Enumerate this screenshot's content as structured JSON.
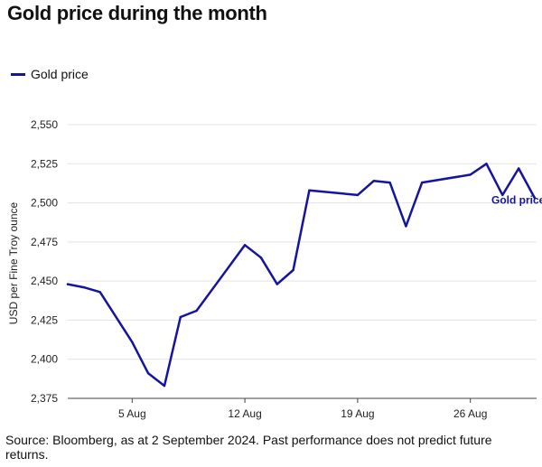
{
  "title": "Gold price during the month",
  "source": "Source: Bloomberg, as at 2 September 2024. Past performance does not predict future returns.",
  "chart_data": {
    "type": "line",
    "title": "Gold price during the month",
    "ylabel": "USD per Fine Troy ounce",
    "xlabel": "",
    "ylim": [
      2375,
      2550
    ],
    "yticks": [
      2375,
      2400,
      2425,
      2450,
      2475,
      2500,
      2525,
      2550
    ],
    "ytick_labels": [
      "2,375",
      "2,400",
      "2,425",
      "2,450",
      "2,475",
      "2,500",
      "2,525",
      "2,550"
    ],
    "xlim": [
      "2024-08-01",
      "2024-08-30"
    ],
    "xticks": [
      "2024-08-05",
      "2024-08-12",
      "2024-08-19",
      "2024-08-26"
    ],
    "xtick_labels": [
      "5 Aug",
      "12 Aug",
      "19 Aug",
      "26 Aug"
    ],
    "grid": "horizontal",
    "legend_position": "top-left",
    "series": [
      {
        "name": "Gold price",
        "color": "#1414a0",
        "end_label": "Gold price",
        "points": [
          {
            "x": "2024-08-01",
            "y": 2448
          },
          {
            "x": "2024-08-02",
            "y": 2446
          },
          {
            "x": "2024-08-03",
            "y": 2443
          },
          {
            "x": "2024-08-05",
            "y": 2411
          },
          {
            "x": "2024-08-06",
            "y": 2391
          },
          {
            "x": "2024-08-07",
            "y": 2383
          },
          {
            "x": "2024-08-08",
            "y": 2427
          },
          {
            "x": "2024-08-09",
            "y": 2431
          },
          {
            "x": "2024-08-12",
            "y": 2473
          },
          {
            "x": "2024-08-13",
            "y": 2465
          },
          {
            "x": "2024-08-14",
            "y": 2448
          },
          {
            "x": "2024-08-15",
            "y": 2457
          },
          {
            "x": "2024-08-16",
            "y": 2508
          },
          {
            "x": "2024-08-19",
            "y": 2505
          },
          {
            "x": "2024-08-20",
            "y": 2514
          },
          {
            "x": "2024-08-21",
            "y": 2513
          },
          {
            "x": "2024-08-22",
            "y": 2485
          },
          {
            "x": "2024-08-23",
            "y": 2513
          },
          {
            "x": "2024-08-26",
            "y": 2518
          },
          {
            "x": "2024-08-27",
            "y": 2525
          },
          {
            "x": "2024-08-28",
            "y": 2505
          },
          {
            "x": "2024-08-29",
            "y": 2522
          },
          {
            "x": "2024-08-30",
            "y": 2503
          }
        ]
      }
    ]
  }
}
